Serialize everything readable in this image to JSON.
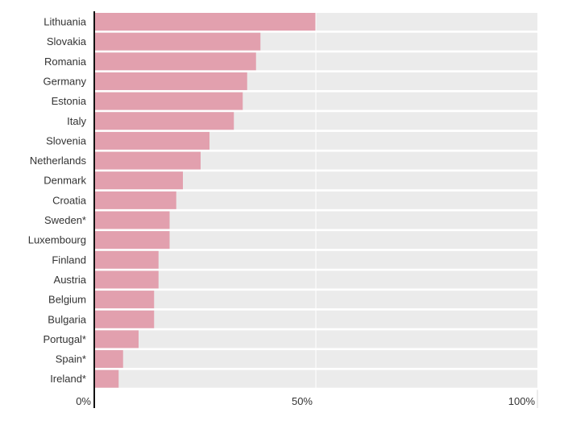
{
  "chart_data": {
    "type": "bar",
    "orientation": "horizontal",
    "title": "",
    "xlabel": "",
    "ylabel": "",
    "xlim": [
      0,
      100
    ],
    "grid": true,
    "categories": [
      "Lithuania",
      "Slovakia",
      "Romania",
      "Germany",
      "Estonia",
      "Italy",
      "Slovenia",
      "Netherlands",
      "Denmark",
      "Croatia",
      "Sweden*",
      "Luxembourg",
      "Finland",
      "Austria",
      "Belgium",
      "Bulgaria",
      "Portugal*",
      "Spain*",
      "Ireland*"
    ],
    "values": [
      50,
      37.5,
      36.5,
      34.5,
      33.5,
      31.5,
      26,
      24,
      20,
      18.5,
      17,
      17,
      14.5,
      14.5,
      13.5,
      13.5,
      10,
      6.5,
      5.5
    ],
    "x_ticks": [
      {
        "value": 0,
        "label": "0%"
      },
      {
        "value": 50,
        "label": "50%"
      },
      {
        "value": 100,
        "label": "100%"
      }
    ],
    "colors": {
      "bar": "#e2a0ae",
      "track": "#ebebeb",
      "axis": "#111111",
      "grid": "#d8d8d8"
    }
  }
}
